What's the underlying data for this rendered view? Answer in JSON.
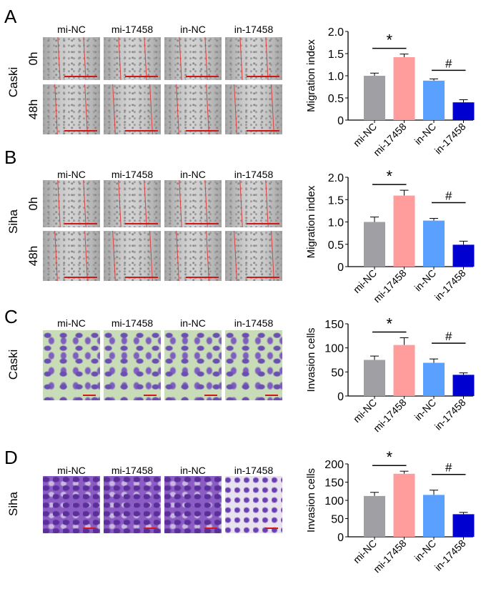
{
  "panels": [
    {
      "letter": "A",
      "cell": "Caski",
      "rows": [
        "0h",
        "48h"
      ],
      "kind": "scratch"
    },
    {
      "letter": "B",
      "cell": "Siha",
      "rows": [
        "0h",
        "48h"
      ],
      "kind": "scratch"
    },
    {
      "letter": "C",
      "cell": "Caski",
      "kind": "invasion"
    },
    {
      "letter": "D",
      "cell": "Siha",
      "kind": "invasion"
    }
  ],
  "groups": [
    "mi-NC",
    "mi-17458",
    "in-NC",
    "in-17458"
  ],
  "colors": {
    "mi-NC": "#a0a0a4",
    "mi-17458": "#ff9c9c",
    "in-NC": "#5aa0ff",
    "in-17458": "#0000d0",
    "scale_bar": "#d01818"
  },
  "chart_data": [
    {
      "type": "bar",
      "panel": "A",
      "categories": [
        "mi-NC",
        "mi-17458",
        "in-NC",
        "in-17458"
      ],
      "values": [
        1.0,
        1.42,
        0.89,
        0.4
      ],
      "errors": [
        0.06,
        0.07,
        0.04,
        0.06
      ],
      "ylabel": "Migration index",
      "ylim": [
        0,
        2.0
      ],
      "yticks": [
        "0",
        "0.5",
        "1.0",
        "1.5",
        "2.0"
      ],
      "annotations": [
        {
          "text": "*",
          "between": [
            "mi-NC",
            "mi-17458"
          ]
        },
        {
          "text": "#",
          "between": [
            "in-NC",
            "in-17458"
          ]
        }
      ]
    },
    {
      "type": "bar",
      "panel": "B",
      "categories": [
        "mi-NC",
        "mi-17458",
        "in-NC",
        "in-17458"
      ],
      "values": [
        1.0,
        1.59,
        1.03,
        0.49
      ],
      "errors": [
        0.11,
        0.12,
        0.05,
        0.08
      ],
      "ylabel": "Migration index",
      "ylim": [
        0,
        2.0
      ],
      "yticks": [
        "0",
        "0.5",
        "1.0",
        "1.5",
        "2.0"
      ],
      "annotations": [
        {
          "text": "*",
          "between": [
            "mi-NC",
            "mi-17458"
          ]
        },
        {
          "text": "#",
          "between": [
            "in-NC",
            "in-17458"
          ]
        }
      ]
    },
    {
      "type": "bar",
      "panel": "C",
      "categories": [
        "mi-NC",
        "mi-17458",
        "in-NC",
        "in-17458"
      ],
      "values": [
        75,
        106,
        69,
        44
      ],
      "errors": [
        8,
        15,
        8,
        4
      ],
      "ylabel": "Invasion cells",
      "ylim": [
        0,
        150
      ],
      "yticks": [
        "0",
        "50",
        "100",
        "150"
      ],
      "annotations": [
        {
          "text": "*",
          "between": [
            "mi-NC",
            "mi-17458"
          ]
        },
        {
          "text": "#",
          "between": [
            "in-NC",
            "in-17458"
          ]
        }
      ]
    },
    {
      "type": "bar",
      "panel": "D",
      "categories": [
        "mi-NC",
        "mi-17458",
        "in-NC",
        "in-17458"
      ],
      "values": [
        112,
        173,
        115,
        62
      ],
      "errors": [
        10,
        7,
        13,
        5
      ],
      "ylabel": "Invasion cells",
      "ylim": [
        0,
        200
      ],
      "yticks": [
        "0",
        "50",
        "100",
        "150",
        "200"
      ],
      "annotations": [
        {
          "text": "*",
          "between": [
            "mi-NC",
            "mi-17458"
          ]
        },
        {
          "text": "#",
          "between": [
            "in-NC",
            "in-17458"
          ]
        }
      ]
    }
  ]
}
